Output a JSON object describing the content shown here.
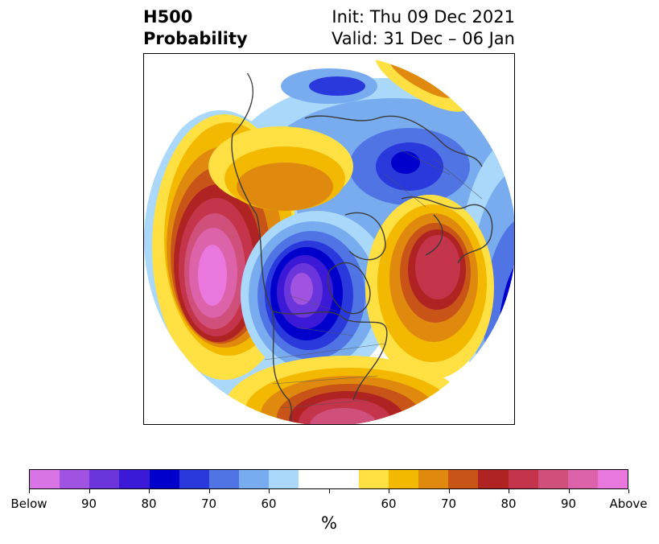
{
  "header": {
    "title_line1": "H500",
    "title_line2": "Probability",
    "init_line": "Init: Thu 09 Dec 2021",
    "valid_line": "Valid: 31 Dec – 06 Jan"
  },
  "colorbar": {
    "unit": "%",
    "colors": [
      "#d874e4",
      "#a052e0",
      "#6b35dc",
      "#3c19d6",
      "#0000cd",
      "#2a39dc",
      "#5074e4",
      "#78acef",
      "#a9d8fb",
      "#ffffff",
      "#ffffff",
      "#ffe042",
      "#f3b800",
      "#df8a0e",
      "#c85418",
      "#b02323",
      "#c4354b",
      "#d0507c",
      "#dc63aa",
      "#e878dd"
    ],
    "tick_labels": [
      "Below",
      "90",
      "80",
      "70",
      "60",
      "",
      "60",
      "70",
      "80",
      "90",
      "Above"
    ]
  },
  "map": {
    "projection": "north-polar-stereographic",
    "field": "500 hPa height anomaly probability"
  }
}
